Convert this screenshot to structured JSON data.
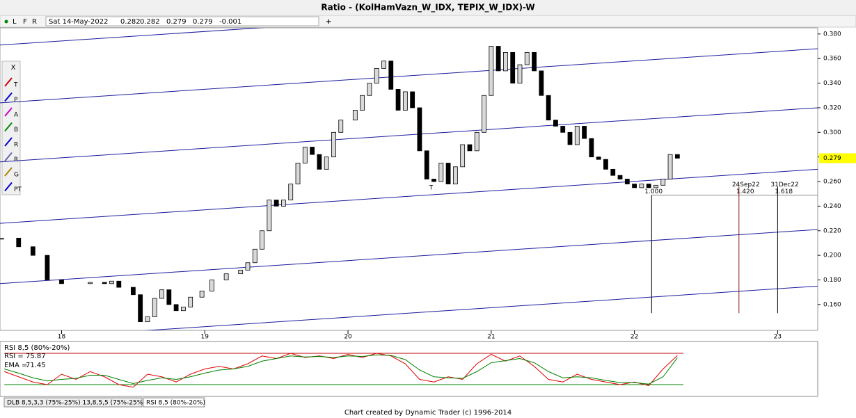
{
  "header": {
    "title": "Ratio - (KolHamVazn_W_IDX, TEPIX_W_IDX)-W",
    "modes": [
      "L",
      "F",
      "R"
    ],
    "date": "Sat 14-May-2022",
    "quote": [
      0.282,
      0.282,
      0.279,
      0.279,
      -0.001
    ]
  },
  "toolbar": {
    "close": "X",
    "tools": [
      "T",
      "P",
      "A",
      "B",
      "R",
      "R",
      "G",
      "PT"
    ]
  },
  "chart_data": [
    {
      "type": "candlestick",
      "x": [
        17.58,
        17.7,
        17.8,
        17.9,
        18.0,
        18.2,
        18.3,
        18.35,
        18.4,
        18.5,
        18.55,
        18.6,
        18.65,
        18.7,
        18.75,
        18.8,
        18.85,
        18.9,
        18.98,
        19.05,
        19.15,
        19.25,
        19.3,
        19.35,
        19.4,
        19.45,
        19.5,
        19.55,
        19.6,
        19.65,
        19.7,
        19.75,
        19.8,
        19.85,
        19.9,
        19.95,
        20.05,
        20.1,
        20.15,
        20.2,
        20.25,
        20.3,
        20.35,
        20.4,
        20.45,
        20.5,
        20.55,
        20.6,
        20.65,
        20.7,
        20.75,
        20.8,
        20.85,
        20.9,
        20.95,
        21.0,
        21.05,
        21.1,
        21.15,
        21.2,
        21.25,
        21.3,
        21.35,
        21.4,
        21.45,
        21.5,
        21.55,
        21.6,
        21.65,
        21.7,
        21.75,
        21.8,
        21.85,
        21.9,
        21.95,
        22.0,
        22.05,
        22.1,
        22.15,
        22.2,
        22.25,
        22.3
      ],
      "values": [
        0.214,
        0.207,
        0.2,
        0.18,
        0.177,
        0.178,
        0.177,
        0.179,
        0.174,
        0.168,
        0.146,
        0.15,
        0.165,
        0.172,
        0.16,
        0.155,
        0.158,
        0.166,
        0.171,
        0.18,
        0.185,
        0.188,
        0.194,
        0.205,
        0.22,
        0.245,
        0.24,
        0.245,
        0.258,
        0.275,
        0.288,
        0.282,
        0.27,
        0.28,
        0.3,
        0.31,
        0.318,
        0.33,
        0.34,
        0.352,
        0.358,
        0.335,
        0.318,
        0.333,
        0.32,
        0.285,
        0.262,
        0.26,
        0.275,
        0.258,
        0.272,
        0.29,
        0.285,
        0.3,
        0.33,
        0.37,
        0.35,
        0.365,
        0.34,
        0.355,
        0.365,
        0.35,
        0.33,
        0.31,
        0.305,
        0.3,
        0.29,
        0.305,
        0.295,
        0.28,
        0.278,
        0.27,
        0.265,
        0.262,
        0.258,
        0.255,
        0.258,
        0.255,
        0.257,
        0.262,
        0.282,
        0.279
      ],
      "color_up": "#d9d9d9",
      "color_down": "#000000",
      "xlim": [
        17.57,
        23.28
      ],
      "xticks": [
        18,
        19,
        20,
        21,
        22,
        23
      ],
      "ylim": [
        0.139,
        0.385
      ],
      "yticks": [
        {
          "value": 0.16,
          "label": "0.160"
        },
        {
          "value": 0.18,
          "label": "0.180"
        },
        {
          "value": 0.2,
          "label": "0.200"
        },
        {
          "value": 0.22,
          "label": "0.220"
        },
        {
          "value": 0.24,
          "label": "0.240"
        },
        {
          "value": 0.26,
          "label": "0.260"
        },
        {
          "value": 0.28,
          "label": "0.280"
        },
        {
          "value": 0.3,
          "label": "0.300"
        },
        {
          "value": 0.32,
          "label": "0.320"
        },
        {
          "value": 0.34,
          "label": "0.340"
        },
        {
          "value": 0.36,
          "label": "0.360"
        },
        {
          "value": 0.38,
          "label": "0.380"
        }
      ],
      "last_price_label": "0.279",
      "channel": {
        "color": "#1a1a9c",
        "x": [
          17.57,
          23.28
        ],
        "lines": [
          [
            0.371,
            0.415
          ],
          [
            0.324,
            0.368
          ],
          [
            0.276,
            0.32
          ],
          [
            0.226,
            0.27
          ],
          [
            0.177,
            0.221
          ],
          [
            0.131,
            0.175
          ]
        ]
      },
      "projection": {
        "level": 0.249,
        "base": 0.153,
        "lines": [
          {
            "x": 22.12,
            "label": "1.000",
            "color": "#000000"
          },
          {
            "x": 22.73,
            "date": "24Sep22",
            "label": "1.420",
            "color": "#8b1a1a"
          },
          {
            "x": 23.0,
            "date": "31Dec22",
            "label": "1.618",
            "color": "#000000"
          }
        ]
      },
      "annotations": [
        {
          "text": "T",
          "x": 20.58,
          "y": 0.255
        }
      ]
    },
    {
      "type": "line",
      "title": "RSI 8,5 (80%-20%)",
      "ylim": [
        0,
        100
      ],
      "bands": [
        {
          "value": 80,
          "color": "#c00000"
        },
        {
          "value": 20,
          "color": "#008000"
        }
      ],
      "x": [
        17.6,
        17.7,
        17.8,
        17.9,
        18.0,
        18.1,
        18.2,
        18.3,
        18.4,
        18.5,
        18.6,
        18.7,
        18.8,
        18.9,
        19.0,
        19.1,
        19.2,
        19.3,
        19.4,
        19.5,
        19.6,
        19.7,
        19.8,
        19.9,
        20.0,
        20.1,
        20.2,
        20.3,
        20.4,
        20.5,
        20.6,
        20.7,
        20.8,
        20.9,
        21.0,
        21.1,
        21.2,
        21.3,
        21.4,
        21.5,
        21.6,
        21.7,
        21.8,
        21.9,
        22.0,
        22.1,
        22.2,
        22.3
      ],
      "series": [
        {
          "name": "RSI =",
          "color": "#e00000",
          "values": [
            45,
            35,
            25,
            20,
            40,
            30,
            45,
            35,
            20,
            15,
            40,
            35,
            25,
            40,
            50,
            55,
            50,
            60,
            75,
            70,
            80,
            72,
            75,
            70,
            78,
            72,
            80,
            75,
            60,
            30,
            25,
            35,
            30,
            60,
            78,
            65,
            75,
            55,
            30,
            25,
            40,
            30,
            25,
            20,
            25,
            18,
            50,
            75.87
          ]
        },
        {
          "name": "EMA =",
          "color": "#008000",
          "values": [
            50,
            42,
            33,
            27,
            30,
            32,
            38,
            38,
            30,
            22,
            28,
            33,
            30,
            35,
            42,
            48,
            50,
            55,
            65,
            70,
            75,
            73,
            74,
            72,
            75,
            74,
            77,
            76,
            68,
            48,
            35,
            33,
            32,
            45,
            62,
            66,
            70,
            62,
            45,
            33,
            35,
            33,
            28,
            24,
            24,
            21,
            35,
            71.45
          ]
        }
      ]
    }
  ],
  "tabs": [
    "DLB 8,5,3,3 (75%-25%) 13,8,5,5 (75%-25%)",
    "RSI 8,5 (80%-20%)"
  ],
  "footer": "Chart created by Dynamic Trader  (c) 1996-2014"
}
